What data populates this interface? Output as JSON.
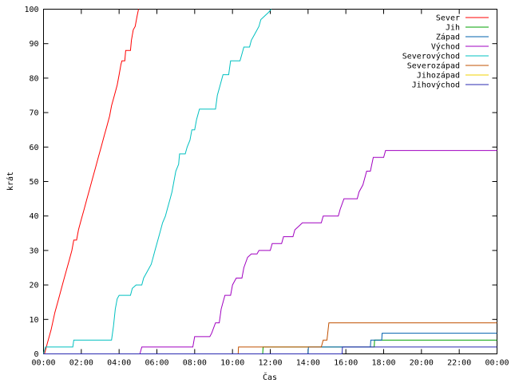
{
  "chart_data": {
    "type": "line",
    "xlabel": "Čas",
    "ylabel": "krát",
    "xlim": [
      0,
      24
    ],
    "ylim": [
      0,
      100
    ],
    "xticks": [
      "00:00",
      "02:00",
      "04:00",
      "06:00",
      "08:00",
      "10:00",
      "12:00",
      "14:00",
      "16:00",
      "18:00",
      "20:00",
      "22:00",
      "00:00"
    ],
    "yticks": [
      0,
      10,
      20,
      30,
      40,
      50,
      60,
      70,
      80,
      90,
      100
    ],
    "grid": false,
    "legend": "top-right",
    "series": [
      {
        "name": "Sever",
        "color": "#ff0000",
        "points": [
          [
            0,
            0
          ],
          [
            0.05,
            0
          ],
          [
            0.2,
            3
          ],
          [
            0.4,
            7
          ],
          [
            0.6,
            12
          ],
          [
            0.75,
            15
          ],
          [
            0.9,
            18
          ],
          [
            1.05,
            21
          ],
          [
            1.2,
            24
          ],
          [
            1.35,
            27
          ],
          [
            1.5,
            30
          ],
          [
            1.6,
            33
          ],
          [
            1.75,
            33
          ],
          [
            1.85,
            36
          ],
          [
            2.0,
            39
          ],
          [
            2.15,
            42
          ],
          [
            2.3,
            45
          ],
          [
            2.45,
            48
          ],
          [
            2.6,
            51
          ],
          [
            2.75,
            54
          ],
          [
            2.9,
            57
          ],
          [
            3.05,
            60
          ],
          [
            3.2,
            63
          ],
          [
            3.35,
            66
          ],
          [
            3.5,
            69
          ],
          [
            3.6,
            72
          ],
          [
            3.75,
            75
          ],
          [
            3.9,
            78
          ],
          [
            4.0,
            81
          ],
          [
            4.1,
            84
          ],
          [
            4.15,
            85
          ],
          [
            4.3,
            85
          ],
          [
            4.35,
            88
          ],
          [
            4.6,
            88
          ],
          [
            4.65,
            91
          ],
          [
            4.75,
            94
          ],
          [
            4.85,
            95
          ],
          [
            4.95,
            98
          ],
          [
            5.03,
            100
          ]
        ]
      },
      {
        "name": "Jih",
        "color": "#00a000",
        "points": [
          [
            0,
            0
          ],
          [
            11.6,
            0
          ],
          [
            11.62,
            2
          ],
          [
            17.5,
            2
          ],
          [
            17.52,
            4
          ],
          [
            24,
            4
          ]
        ]
      },
      {
        "name": "Západ",
        "color": "#0060ad",
        "points": [
          [
            0,
            0
          ],
          [
            14.0,
            0
          ],
          [
            14.02,
            2
          ],
          [
            17.3,
            2
          ],
          [
            17.32,
            4
          ],
          [
            17.9,
            4
          ],
          [
            17.92,
            6
          ],
          [
            24,
            6
          ]
        ]
      },
      {
        "name": "Východ",
        "color": "#a000c0",
        "points": [
          [
            0,
            0
          ],
          [
            5.1,
            0
          ],
          [
            5.2,
            2
          ],
          [
            7.9,
            2
          ],
          [
            8.0,
            5
          ],
          [
            8.8,
            5
          ],
          [
            8.9,
            6
          ],
          [
            9.1,
            9
          ],
          [
            9.3,
            9
          ],
          [
            9.4,
            13
          ],
          [
            9.6,
            17
          ],
          [
            9.9,
            17
          ],
          [
            10.0,
            20
          ],
          [
            10.2,
            22
          ],
          [
            10.5,
            22
          ],
          [
            10.6,
            25
          ],
          [
            10.8,
            28
          ],
          [
            11.0,
            29
          ],
          [
            11.3,
            29
          ],
          [
            11.4,
            30
          ],
          [
            12.0,
            30
          ],
          [
            12.1,
            32
          ],
          [
            12.6,
            32
          ],
          [
            12.7,
            34
          ],
          [
            13.2,
            34
          ],
          [
            13.3,
            36
          ],
          [
            13.5,
            37
          ],
          [
            13.7,
            38
          ],
          [
            14.7,
            38
          ],
          [
            14.8,
            40
          ],
          [
            15.6,
            40
          ],
          [
            15.7,
            42
          ],
          [
            15.9,
            45
          ],
          [
            16.6,
            45
          ],
          [
            16.7,
            47
          ],
          [
            16.9,
            49
          ],
          [
            17.1,
            53
          ],
          [
            17.3,
            53
          ],
          [
            17.45,
            57
          ],
          [
            18.0,
            57
          ],
          [
            18.1,
            59
          ],
          [
            24,
            59
          ]
        ]
      },
      {
        "name": "Severovýchod",
        "color": "#00c0c0",
        "points": [
          [
            0,
            0
          ],
          [
            0.1,
            2
          ],
          [
            1.55,
            2
          ],
          [
            1.6,
            4
          ],
          [
            3.6,
            4
          ],
          [
            3.7,
            8
          ],
          [
            3.8,
            13
          ],
          [
            3.9,
            16
          ],
          [
            4.0,
            17
          ],
          [
            4.3,
            17
          ],
          [
            4.35,
            17
          ],
          [
            4.6,
            17
          ],
          [
            4.7,
            19
          ],
          [
            4.9,
            20
          ],
          [
            5.2,
            20
          ],
          [
            5.3,
            22
          ],
          [
            5.5,
            24
          ],
          [
            5.7,
            26
          ],
          [
            5.8,
            28
          ],
          [
            5.9,
            30
          ],
          [
            6.0,
            32
          ],
          [
            6.15,
            35
          ],
          [
            6.3,
            38
          ],
          [
            6.45,
            40
          ],
          [
            6.55,
            42
          ],
          [
            6.7,
            45
          ],
          [
            6.8,
            47
          ],
          [
            6.9,
            50
          ],
          [
            7.0,
            53
          ],
          [
            7.15,
            55
          ],
          [
            7.2,
            58
          ],
          [
            7.5,
            58
          ],
          [
            7.6,
            60
          ],
          [
            7.75,
            62
          ],
          [
            7.85,
            65
          ],
          [
            8.0,
            65
          ],
          [
            8.1,
            68
          ],
          [
            8.25,
            71
          ],
          [
            9.1,
            71
          ],
          [
            9.2,
            75
          ],
          [
            9.35,
            78
          ],
          [
            9.5,
            81
          ],
          [
            9.8,
            81
          ],
          [
            9.9,
            85
          ],
          [
            10.4,
            85
          ],
          [
            10.5,
            87
          ],
          [
            10.6,
            89
          ],
          [
            10.9,
            89
          ],
          [
            11.0,
            91
          ],
          [
            11.2,
            93
          ],
          [
            11.4,
            95
          ],
          [
            11.5,
            97
          ],
          [
            11.7,
            98
          ],
          [
            11.9,
            99
          ],
          [
            12.05,
            100
          ]
        ]
      },
      {
        "name": "Severozápad",
        "color": "#c05000",
        "points": [
          [
            0,
            0
          ],
          [
            10.3,
            0
          ],
          [
            10.32,
            2
          ],
          [
            14.7,
            2
          ],
          [
            14.8,
            4
          ],
          [
            15.0,
            4
          ],
          [
            15.1,
            9
          ],
          [
            24,
            9
          ]
        ]
      },
      {
        "name": "Jihozápad",
        "color": "#f0d000",
        "points": []
      },
      {
        "name": "Jihovýchod",
        "color": "#2a2ab0",
        "points": [
          [
            0,
            0
          ],
          [
            15.8,
            0
          ],
          [
            15.82,
            2
          ],
          [
            24,
            2
          ]
        ]
      }
    ]
  }
}
